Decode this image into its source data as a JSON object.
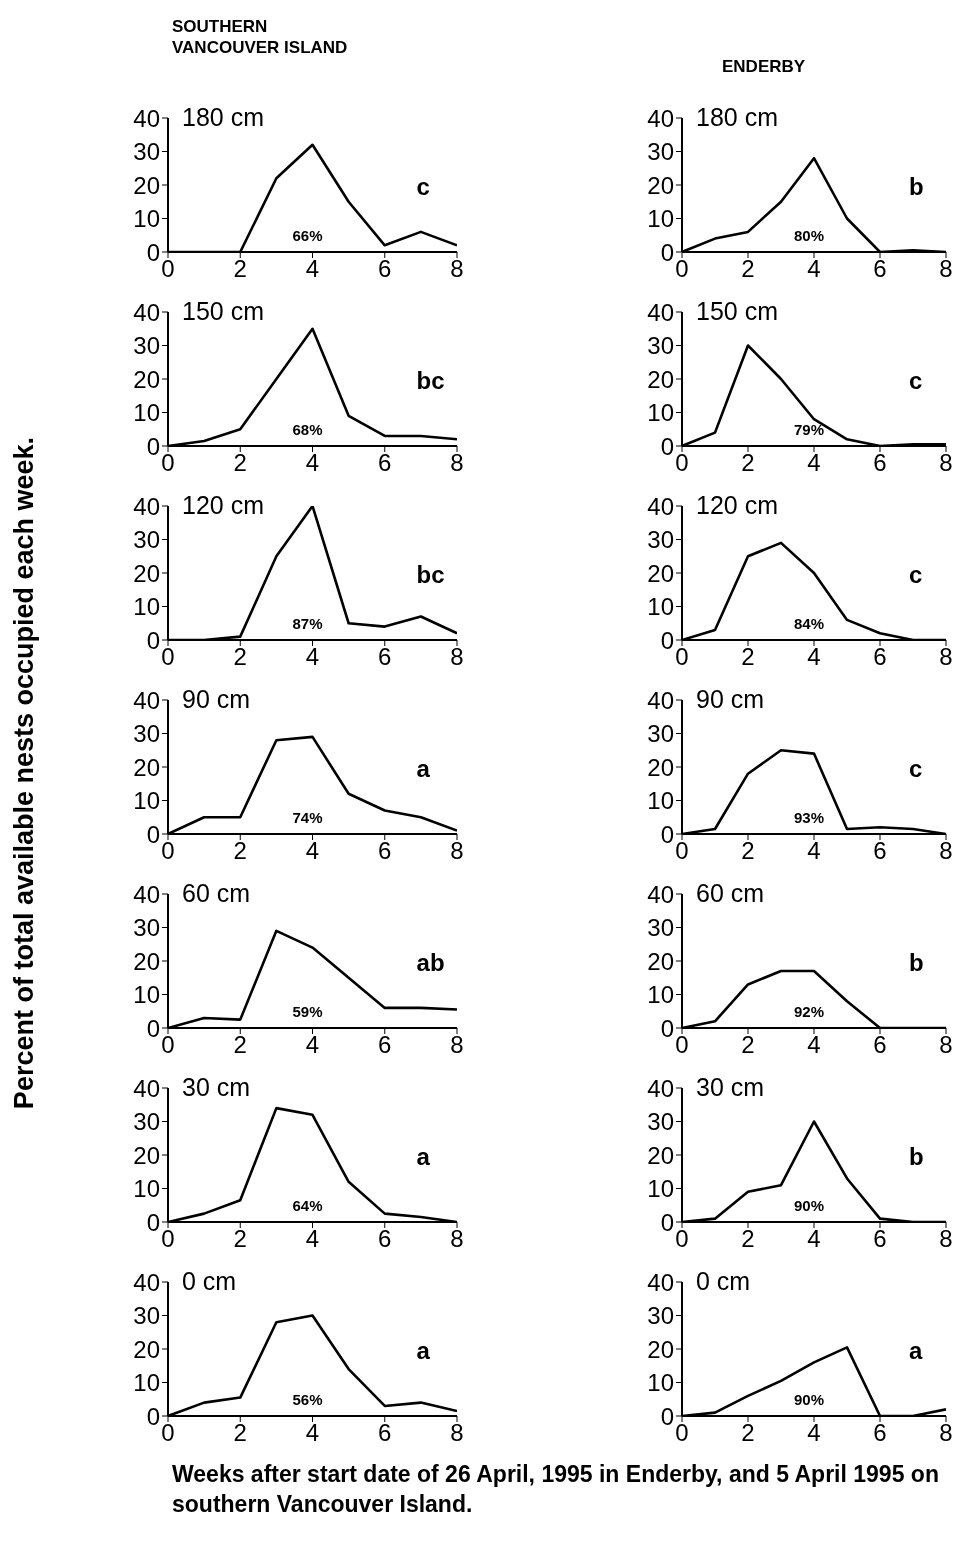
{
  "chart_data": [
    {
      "type": "line",
      "title": "SOUTHERN VANCOUVER ISLAND",
      "annotations": [
        "180 cm",
        "66%",
        "c"
      ],
      "x": [
        0,
        1,
        2,
        3,
        4,
        5,
        6,
        7,
        8
      ],
      "values": [
        0,
        0,
        0,
        22,
        32,
        15,
        2,
        6,
        2
      ],
      "color": "#000000",
      "xlim": [
        0,
        8
      ],
      "xticks": [
        0,
        2,
        4,
        6,
        8
      ],
      "ylim": [
        0,
        40
      ],
      "yticks": [
        0,
        10,
        20,
        30,
        40
      ]
    },
    {
      "type": "line",
      "title": "ENDERBY",
      "annotations": [
        "180 cm",
        "80%",
        "b"
      ],
      "x": [
        0,
        1,
        2,
        3,
        4,
        5,
        6,
        7,
        8
      ],
      "values": [
        0,
        4,
        6,
        15,
        28,
        10,
        0,
        0.5,
        0
      ],
      "color": "#000000",
      "xlim": [
        0,
        8
      ],
      "xticks": [
        0,
        2,
        4,
        6,
        8
      ],
      "ylim": [
        0,
        40
      ],
      "yticks": [
        0,
        10,
        20,
        30,
        40
      ]
    },
    {
      "type": "line",
      "annotations": [
        "150 cm",
        "68%",
        "bc"
      ],
      "x": [
        0,
        1,
        2,
        3,
        4,
        5,
        6,
        7,
        8
      ],
      "values": [
        0,
        1.5,
        5,
        20,
        35,
        9,
        3,
        3,
        2
      ],
      "color": "#000000",
      "xlim": [
        0,
        8
      ],
      "xticks": [
        0,
        2,
        4,
        6,
        8
      ],
      "ylim": [
        0,
        40
      ],
      "yticks": [
        0,
        10,
        20,
        30,
        40
      ]
    },
    {
      "type": "line",
      "annotations": [
        "150 cm",
        "79%",
        "c"
      ],
      "x": [
        0,
        1,
        2,
        3,
        4,
        5,
        6,
        7,
        8
      ],
      "values": [
        0,
        4,
        30,
        20,
        8,
        2,
        0,
        0.5,
        0.5
      ],
      "color": "#000000",
      "xlim": [
        0,
        8
      ],
      "xticks": [
        0,
        2,
        4,
        6,
        8
      ],
      "ylim": [
        0,
        40
      ],
      "yticks": [
        0,
        10,
        20,
        30,
        40
      ]
    },
    {
      "type": "line",
      "annotations": [
        "120 cm",
        "87%",
        "bc"
      ],
      "x": [
        0,
        1,
        2,
        3,
        4,
        5,
        6,
        7,
        8
      ],
      "values": [
        0,
        0,
        1,
        25,
        40,
        5,
        4,
        7,
        2
      ],
      "color": "#000000",
      "xlim": [
        0,
        8
      ],
      "xticks": [
        0,
        2,
        4,
        6,
        8
      ],
      "ylim": [
        0,
        40
      ],
      "yticks": [
        0,
        10,
        20,
        30,
        40
      ]
    },
    {
      "type": "line",
      "annotations": [
        "120 cm",
        "84%",
        "c"
      ],
      "x": [
        0,
        1,
        2,
        3,
        4,
        5,
        6,
        7,
        8
      ],
      "values": [
        0,
        3,
        25,
        29,
        20,
        6,
        2,
        0,
        0
      ],
      "color": "#000000",
      "xlim": [
        0,
        8
      ],
      "xticks": [
        0,
        2,
        4,
        6,
        8
      ],
      "ylim": [
        0,
        40
      ],
      "yticks": [
        0,
        10,
        20,
        30,
        40
      ]
    },
    {
      "type": "line",
      "ylabel": "Percent of total available nests occupied each week.",
      "annotations": [
        "90 cm",
        "74%",
        "a"
      ],
      "x": [
        0,
        1,
        2,
        3,
        4,
        5,
        6,
        7,
        8
      ],
      "values": [
        0,
        5,
        5,
        28,
        29,
        12,
        7,
        5,
        1
      ],
      "color": "#000000",
      "xlim": [
        0,
        8
      ],
      "xticks": [
        0,
        2,
        4,
        6,
        8
      ],
      "ylim": [
        0,
        40
      ],
      "yticks": [
        0,
        10,
        20,
        30,
        40
      ]
    },
    {
      "type": "line",
      "annotations": [
        "90 cm",
        "93%",
        "c"
      ],
      "x": [
        0,
        1,
        2,
        3,
        4,
        5,
        6,
        7,
        8
      ],
      "values": [
        0,
        1.5,
        18,
        25,
        24,
        1.5,
        2,
        1.5,
        0
      ],
      "color": "#000000",
      "xlim": [
        0,
        8
      ],
      "xticks": [
        0,
        2,
        4,
        6,
        8
      ],
      "ylim": [
        0,
        40
      ],
      "yticks": [
        0,
        10,
        20,
        30,
        40
      ]
    },
    {
      "type": "line",
      "annotations": [
        "60 cm",
        "59%",
        "ab"
      ],
      "x": [
        0,
        1,
        2,
        3,
        4,
        5,
        6,
        7,
        8
      ],
      "values": [
        0,
        3,
        2.5,
        29,
        24,
        15,
        6,
        6,
        5.5
      ],
      "color": "#000000",
      "xlim": [
        0,
        8
      ],
      "xticks": [
        0,
        2,
        4,
        6,
        8
      ],
      "ylim": [
        0,
        40
      ],
      "yticks": [
        0,
        10,
        20,
        30,
        40
      ]
    },
    {
      "type": "line",
      "annotations": [
        "60 cm",
        "92%",
        "b"
      ],
      "x": [
        0,
        1,
        2,
        3,
        4,
        5,
        6,
        7,
        8
      ],
      "values": [
        0,
        2,
        13,
        17,
        17,
        8,
        0,
        0,
        0
      ],
      "color": "#000000",
      "xlim": [
        0,
        8
      ],
      "xticks": [
        0,
        2,
        4,
        6,
        8
      ],
      "ylim": [
        0,
        40
      ],
      "yticks": [
        0,
        10,
        20,
        30,
        40
      ]
    },
    {
      "type": "line",
      "annotations": [
        "30 cm",
        "64%",
        "a"
      ],
      "x": [
        0,
        1,
        2,
        3,
        4,
        5,
        6,
        7,
        8
      ],
      "values": [
        0,
        2.5,
        6.5,
        34,
        32,
        12,
        2.5,
        1.5,
        0
      ],
      "color": "#000000",
      "xlim": [
        0,
        8
      ],
      "xticks": [
        0,
        2,
        4,
        6,
        8
      ],
      "ylim": [
        0,
        40
      ],
      "yticks": [
        0,
        10,
        20,
        30,
        40
      ]
    },
    {
      "type": "line",
      "annotations": [
        "30 cm",
        "90%",
        "b"
      ],
      "x": [
        0,
        1,
        2,
        3,
        4,
        5,
        6,
        7,
        8
      ],
      "values": [
        0,
        1,
        9,
        11,
        30,
        13,
        1,
        0,
        0
      ],
      "color": "#000000",
      "xlim": [
        0,
        8
      ],
      "xticks": [
        0,
        2,
        4,
        6,
        8
      ],
      "ylim": [
        0,
        40
      ],
      "yticks": [
        0,
        10,
        20,
        30,
        40
      ]
    },
    {
      "type": "line",
      "annotations": [
        "0 cm",
        "56%",
        "a"
      ],
      "x": [
        0,
        1,
        2,
        3,
        4,
        5,
        6,
        7,
        8
      ],
      "values": [
        0,
        4,
        5.5,
        28,
        30,
        14,
        3,
        4,
        1.5
      ],
      "color": "#000000",
      "xlim": [
        0,
        8
      ],
      "xticks": [
        0,
        2,
        4,
        6,
        8
      ],
      "ylim": [
        0,
        40
      ],
      "yticks": [
        0,
        10,
        20,
        30,
        40
      ]
    },
    {
      "type": "line",
      "xlabel": "Weeks after start date of 26 April, 1995 in Enderby, and 5 April 1995 on southern Vancouver Island.",
      "annotations": [
        "0 cm",
        "90%",
        "a"
      ],
      "x": [
        0,
        1,
        2,
        3,
        4,
        5,
        6,
        7,
        8
      ],
      "values": [
        0,
        1,
        6,
        10.5,
        16,
        20.5,
        0,
        0,
        2
      ],
      "color": "#000000",
      "xlim": [
        0,
        8
      ],
      "xticks": [
        0,
        2,
        4,
        6,
        8
      ],
      "ylim": [
        0,
        40
      ],
      "yticks": [
        0,
        10,
        20,
        30,
        40
      ]
    }
  ]
}
